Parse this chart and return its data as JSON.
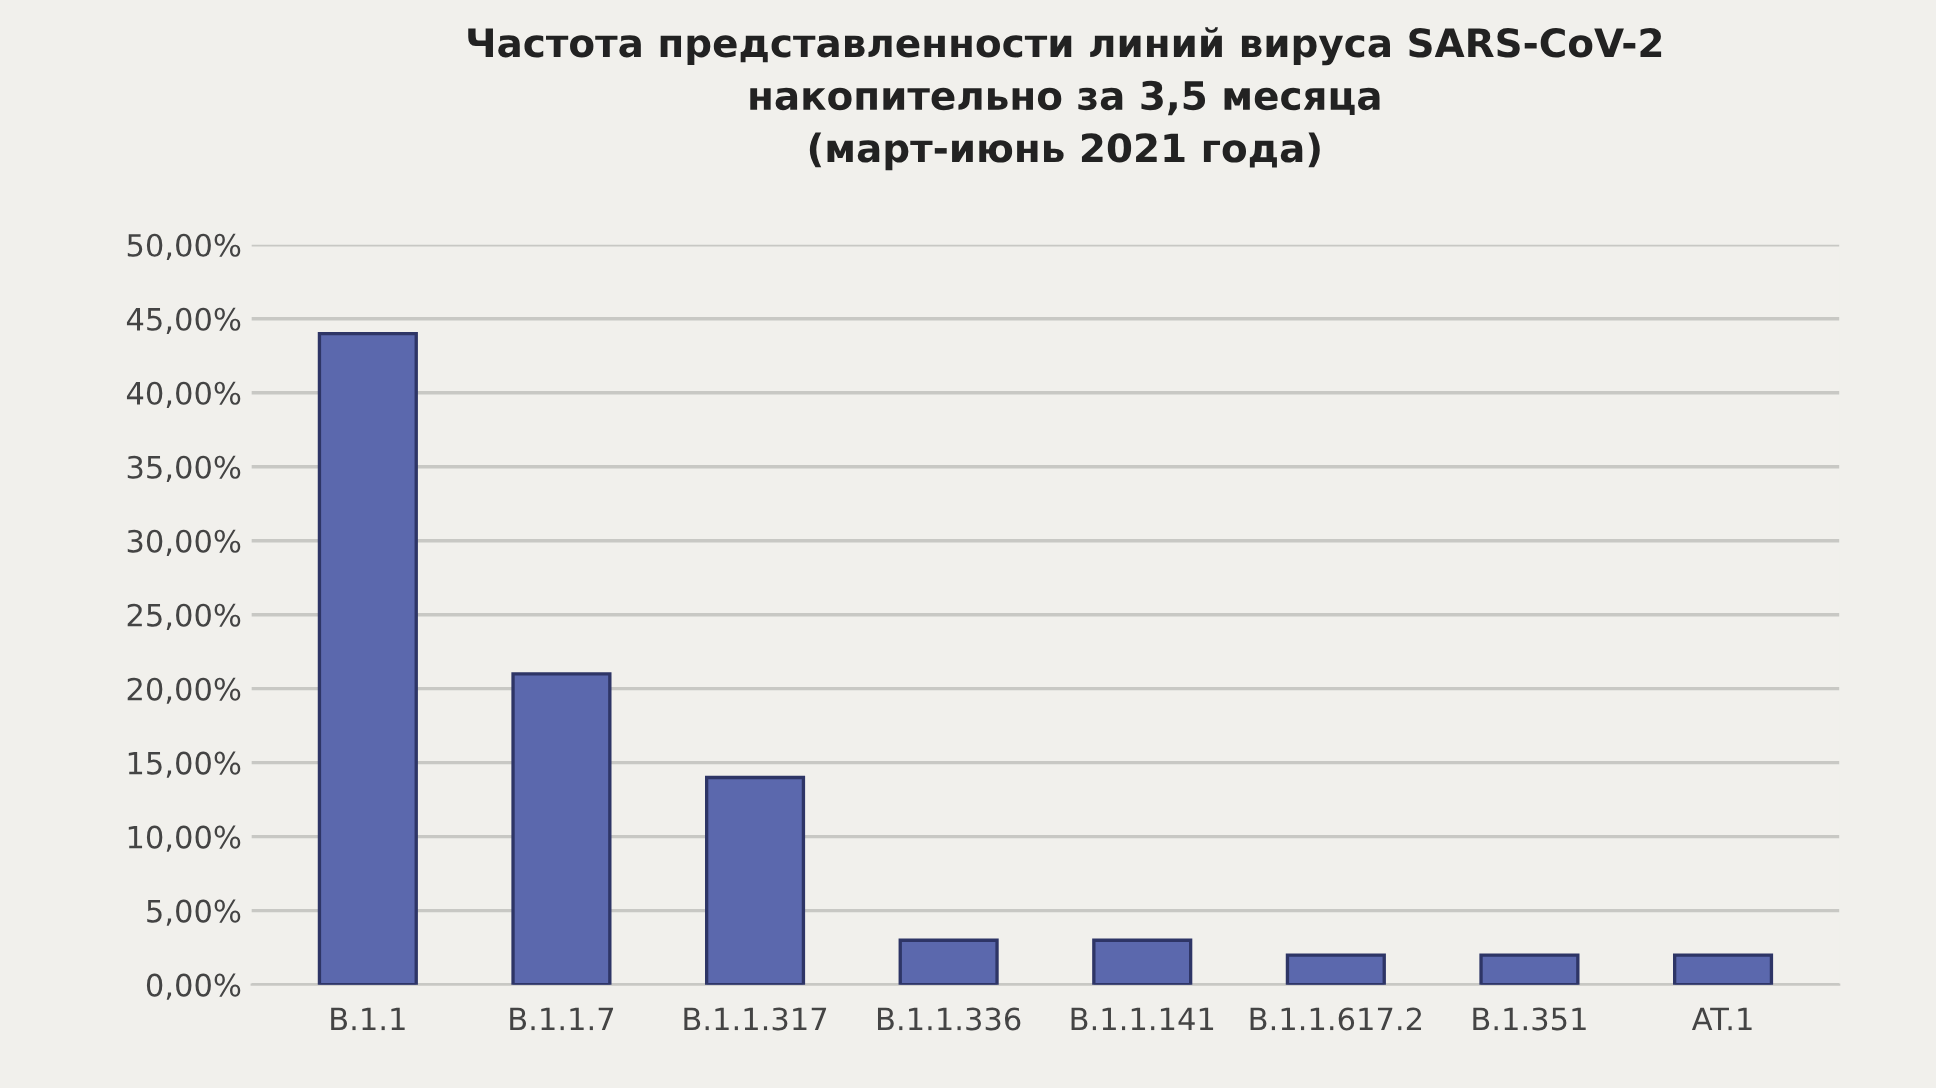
{
  "chart_data": {
    "type": "bar",
    "title": "Частота представленности линий вируса SARS-CoV-2\nнакопительно за 3,5 месяца\n(март-июнь 2021 года)",
    "categories": [
      "B.1.1",
      "B.1.1.7",
      "B.1.1.317",
      "B.1.1.336",
      "B.1.1.141",
      "B.1.1.617.2",
      "B.1.351",
      "AT.1"
    ],
    "values": [
      44,
      21,
      14,
      3,
      3,
      2,
      2,
      2
    ],
    "color": "#5b68ad",
    "ylim": [
      0,
      50
    ],
    "yticks": [
      {
        "value": 0,
        "label": "0,00%"
      },
      {
        "value": 5,
        "label": "5,00%"
      },
      {
        "value": 10,
        "label": "10,00%"
      },
      {
        "value": 15,
        "label": "15,00%"
      },
      {
        "value": 20,
        "label": "20,00%"
      },
      {
        "value": 25,
        "label": "25,00%"
      },
      {
        "value": 30,
        "label": "30,00%"
      },
      {
        "value": 35,
        "label": "35,00%"
      },
      {
        "value": 40,
        "label": "40,00%"
      },
      {
        "value": 45,
        "label": "45,00%"
      },
      {
        "value": 50,
        "label": "50,00%"
      }
    ],
    "grid": "y"
  }
}
